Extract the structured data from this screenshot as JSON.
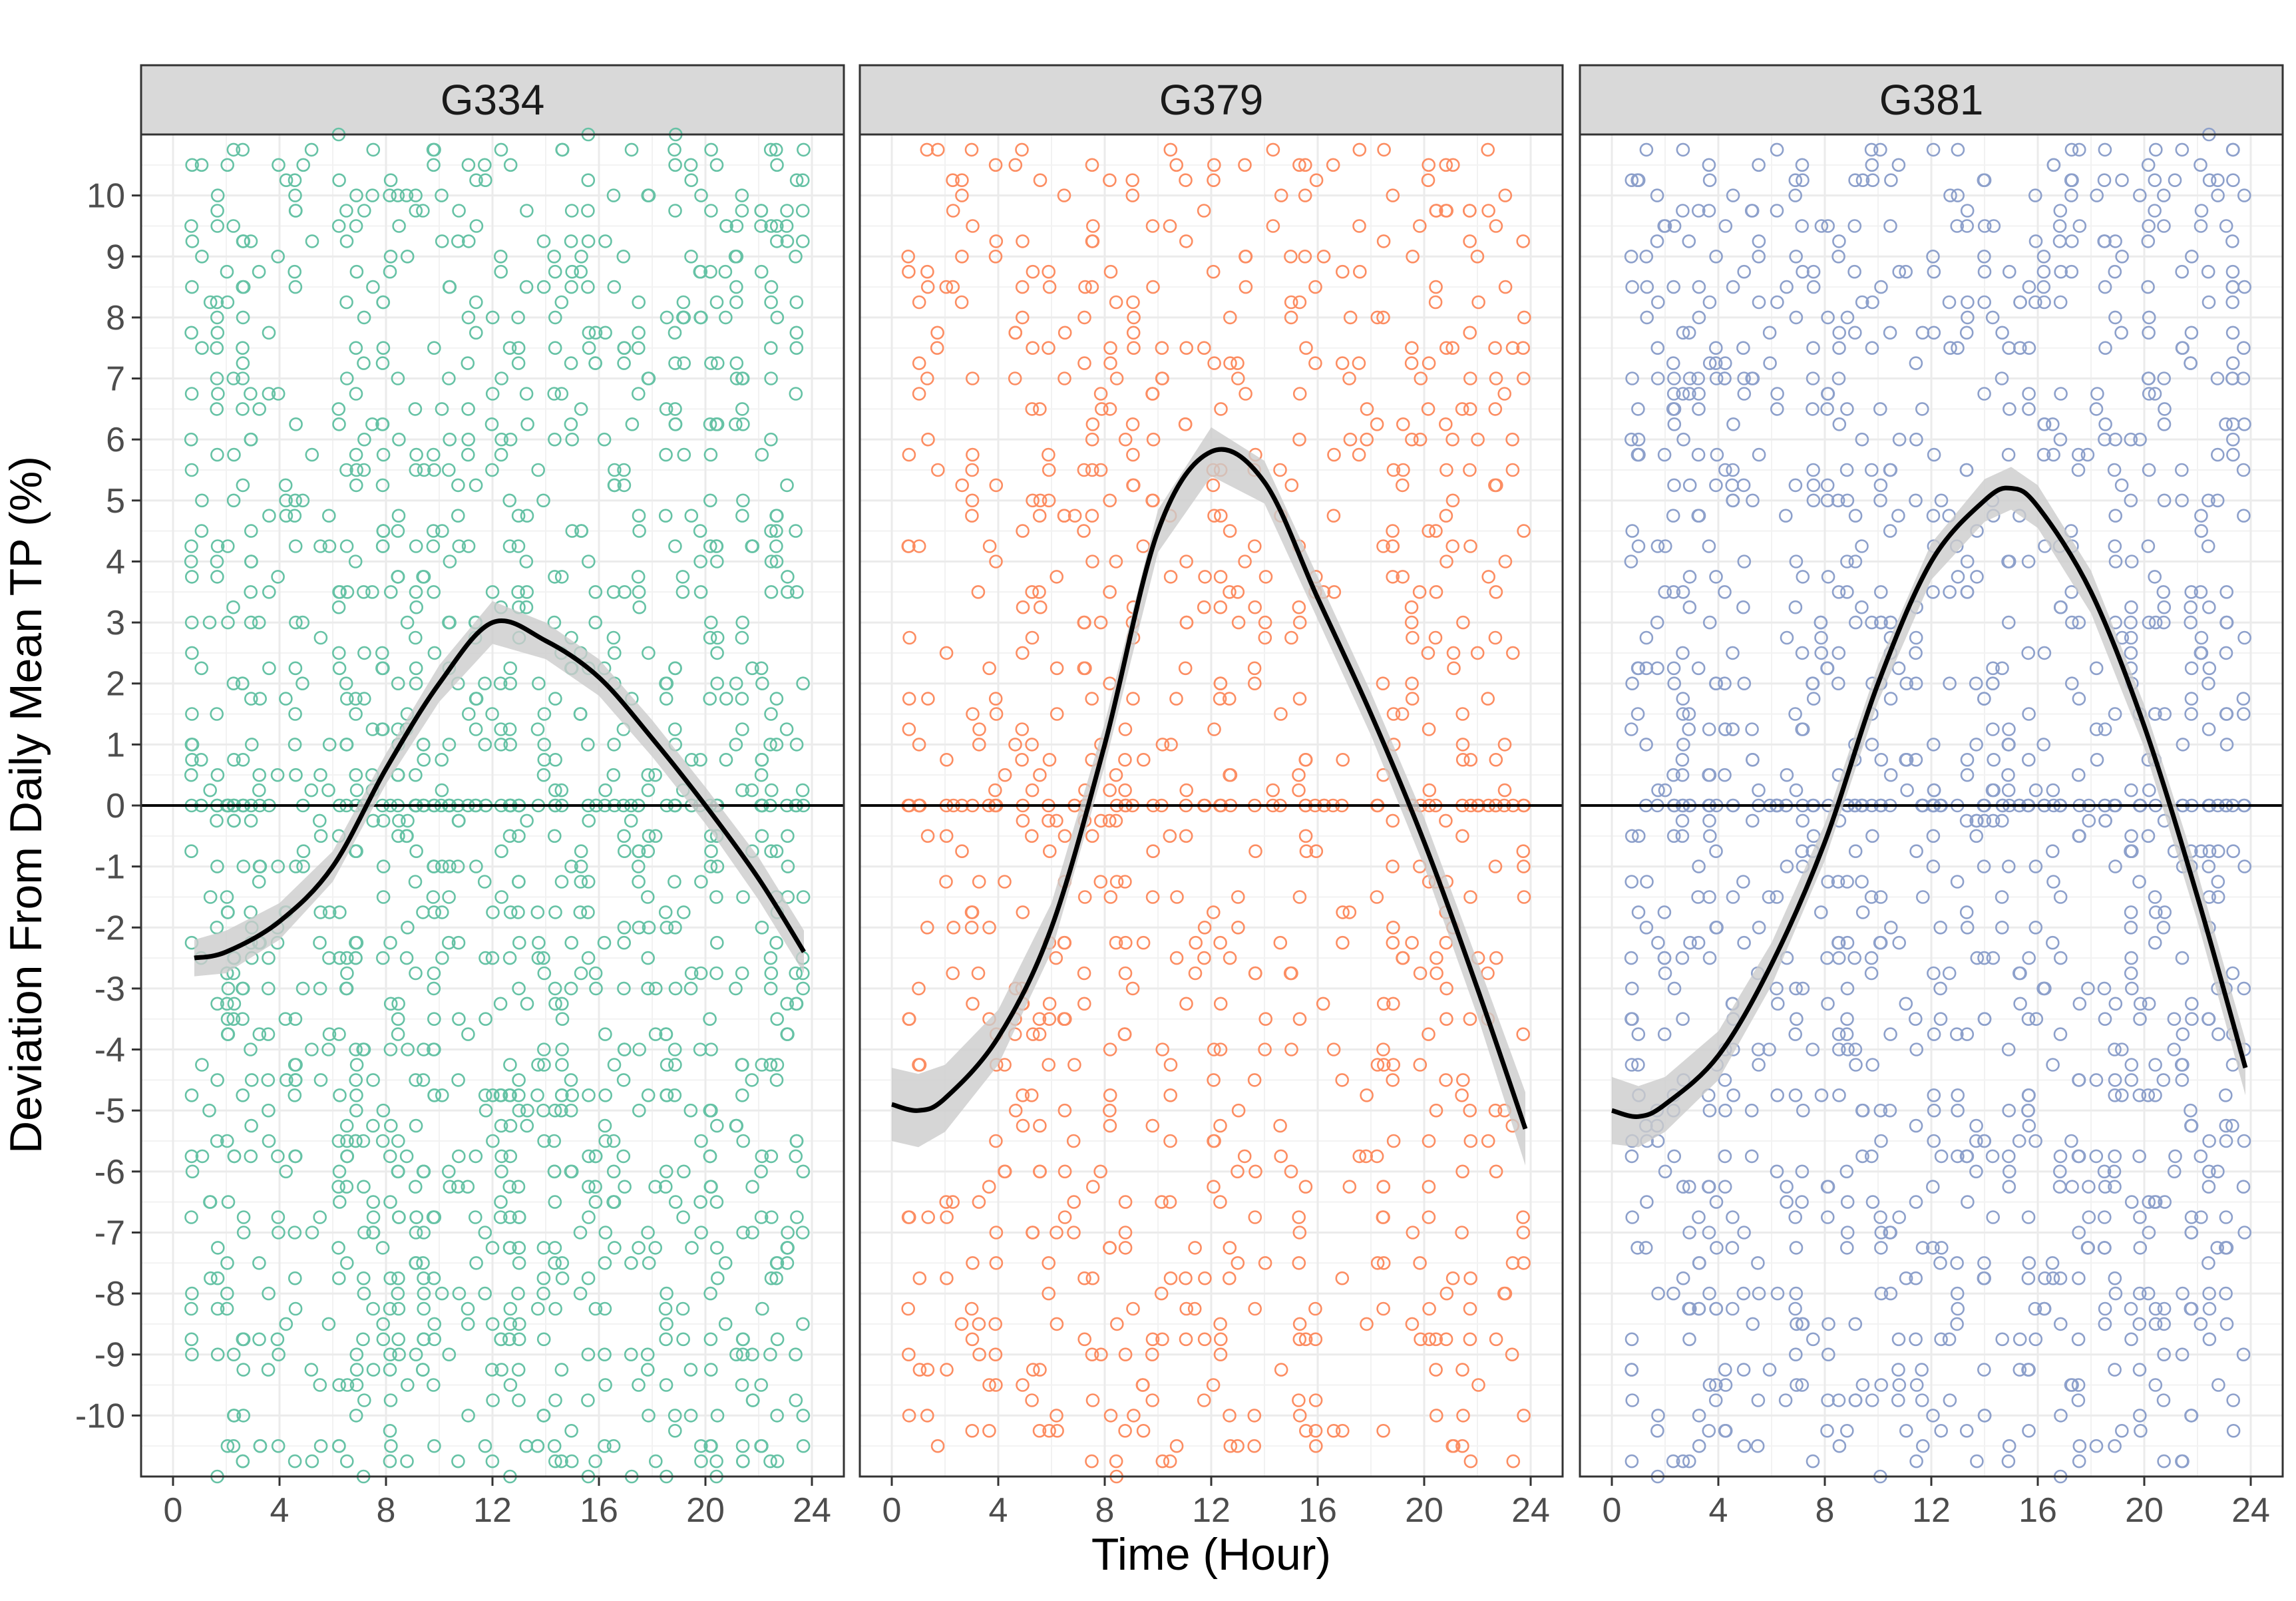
{
  "chart_data": {
    "type": "scatter",
    "facet_by": "group",
    "xlabel": "Time (Hour)",
    "ylabel": "Deviation From Daily Mean TP (%)",
    "xlim": [
      -1.2,
      25.2
    ],
    "ylim": [
      -11,
      11
    ],
    "x_ticks": [
      0,
      4,
      8,
      12,
      16,
      20,
      24
    ],
    "y_ticks": [
      -10,
      -9,
      -8,
      -7,
      -6,
      -5,
      -4,
      -3,
      -2,
      -1,
      0,
      1,
      2,
      3,
      4,
      5,
      6,
      7,
      8,
      9,
      10
    ],
    "reference_line_y": 0,
    "grid": true,
    "legend": "none",
    "point_style": "open-circle",
    "smooth_color": "#000000",
    "band_color": "#cccccc",
    "strip_fill": "#d9d9d9",
    "panels": [
      {
        "name": "G334",
        "color": "#66c2a5",
        "smooth_x": [
          0.8,
          2,
          4,
          6,
          8,
          10,
          12,
          14,
          16,
          18,
          20,
          22,
          23.7
        ],
        "smooth_y": [
          -2.5,
          -2.4,
          -1.9,
          -1.0,
          0.6,
          2.0,
          3.0,
          2.7,
          2.1,
          1.1,
          0.0,
          -1.2,
          -2.4
        ],
        "band_half_width": [
          0.3,
          0.35,
          0.3,
          0.25,
          0.25,
          0.3,
          0.35,
          0.3,
          0.3,
          0.3,
          0.3,
          0.35,
          0.35
        ],
        "point_density": 20
      },
      {
        "name": "G379",
        "color": "#fc8d62",
        "smooth_x": [
          0,
          1,
          2,
          4,
          6,
          8,
          10,
          12,
          14,
          16,
          18,
          20,
          22,
          23.8
        ],
        "smooth_y": [
          -4.9,
          -5.0,
          -4.8,
          -3.8,
          -2.0,
          1.0,
          4.5,
          5.8,
          5.3,
          3.4,
          1.5,
          -0.6,
          -3.0,
          -5.3
        ],
        "band_half_width": [
          0.6,
          0.6,
          0.55,
          0.45,
          0.4,
          0.35,
          0.35,
          0.4,
          0.35,
          0.35,
          0.35,
          0.4,
          0.45,
          0.6
        ],
        "point_density": 12
      },
      {
        "name": "G381",
        "color": "#8da0cb",
        "smooth_x": [
          0,
          1,
          2,
          4,
          6,
          8,
          10,
          12,
          14,
          15,
          16,
          18,
          20,
          22,
          23.8
        ],
        "smooth_y": [
          -5.0,
          -5.1,
          -4.9,
          -4.1,
          -2.6,
          -0.6,
          2.0,
          4.0,
          5.0,
          5.2,
          4.9,
          3.5,
          1.3,
          -1.5,
          -4.3
        ],
        "band_half_width": [
          0.55,
          0.5,
          0.45,
          0.4,
          0.35,
          0.3,
          0.3,
          0.3,
          0.35,
          0.35,
          0.35,
          0.35,
          0.35,
          0.4,
          0.45
        ],
        "point_density": 16
      }
    ]
  }
}
